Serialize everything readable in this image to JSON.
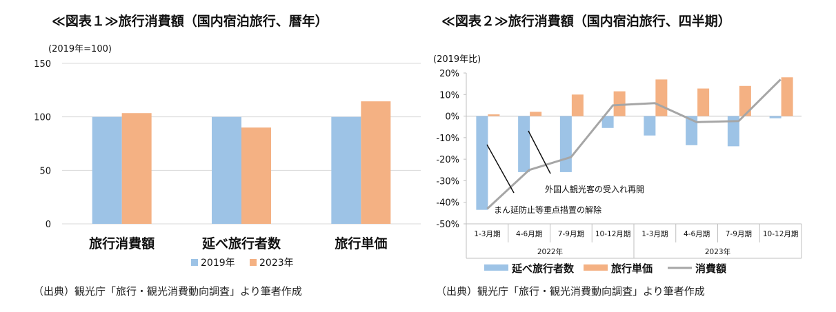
{
  "chart_data": [
    {
      "type": "bar",
      "title": "≪図表１≫旅行消費額（国内宿泊旅行、暦年）",
      "unit_label": "(2019年=100)",
      "categories": [
        "旅行消費額",
        "延べ旅行者数",
        "旅行単価"
      ],
      "series": [
        {
          "name": "2019年",
          "values": [
            100,
            100,
            100
          ],
          "color": "#9dc3e6"
        },
        {
          "name": "2023年",
          "values": [
            103.5,
            90,
            114.5
          ],
          "color": "#f4b183"
        }
      ],
      "ylim": [
        0,
        150
      ],
      "yticks": [
        "0",
        "50",
        "100",
        "150"
      ],
      "grid": true,
      "legend": "bottom",
      "source": "（出典）観光庁「旅行・観光消費動向調査」より筆者作成"
    },
    {
      "type": "bar",
      "title": "≪図表２≫旅行消費額（国内宿泊旅行、四半期）",
      "unit_label": "(2019年比)",
      "categories": [
        "1-3月期",
        "4-6月期",
        "7-9月期",
        "10-12月期",
        "1-3月期",
        "4-6月期",
        "7-9月期",
        "10-12月期"
      ],
      "year_groups": [
        "2022年",
        "2023年"
      ],
      "series": [
        {
          "name": "延べ旅行者数",
          "kind": "bar",
          "values": [
            -43.5,
            -26,
            -26,
            -5.5,
            -9,
            -13.5,
            -14,
            -1
          ],
          "color": "#9dc3e6"
        },
        {
          "name": "旅行単価",
          "kind": "bar",
          "values": [
            0.8,
            2,
            10,
            11.5,
            17,
            12.8,
            14,
            18
          ],
          "color": "#f4b183"
        },
        {
          "name": "消費額",
          "kind": "line",
          "values": [
            -43,
            -25,
            -19,
            5,
            6,
            -2.8,
            -2.3,
            17
          ],
          "color": "#a6a6a6"
        }
      ],
      "ylim": [
        -50,
        20
      ],
      "yticks": [
        "-50%",
        "-40%",
        "-30%",
        "-20%",
        "-10%",
        "0%",
        "10%",
        "20%"
      ],
      "annotations": [
        {
          "text": "外国人観光客の受入れ再開"
        },
        {
          "text": "まん延防止等重点措置の解除"
        }
      ],
      "legend": "bottom",
      "source": "（出典）観光庁「旅行・観光消費動向調査」より筆者作成"
    }
  ]
}
